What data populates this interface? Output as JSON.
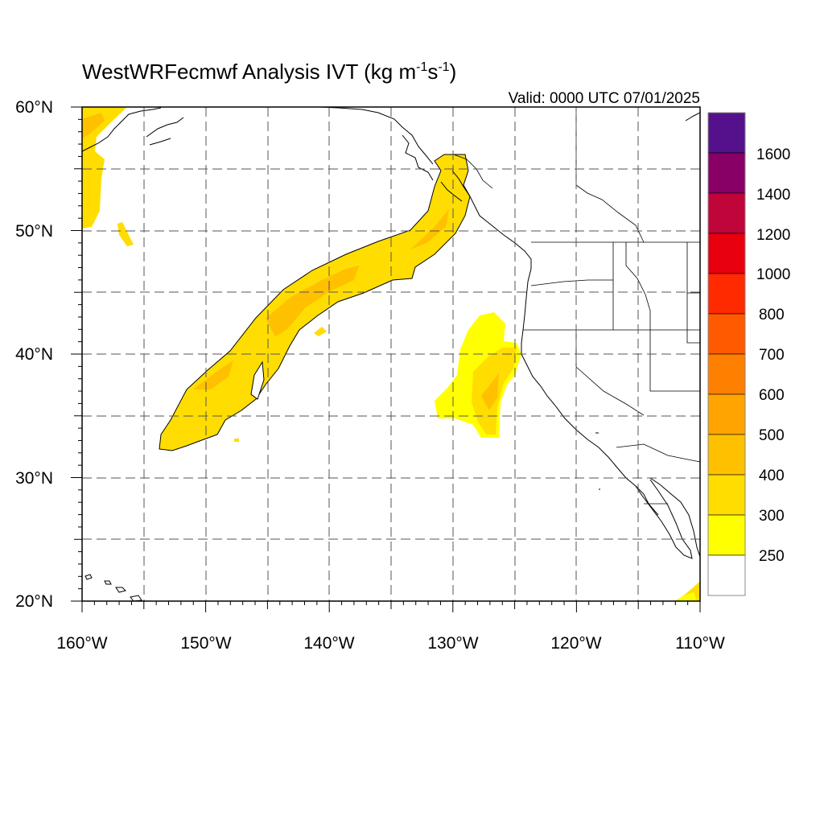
{
  "figure": {
    "title_main": "WestWRFecmwf Analysis IVT (kg m",
    "title_exp1": "-1",
    "title_s": "s",
    "title_exp2": "-1",
    "title_close": ")",
    "valid": "Valid: 0000 UTC 07/01/2025"
  },
  "map": {
    "lon_labels": [
      "160°W",
      "150°W",
      "140°W",
      "130°W",
      "120°W",
      "110°W"
    ],
    "lat_labels": [
      "60°N",
      "50°N",
      "40°N",
      "30°N",
      "20°N"
    ],
    "lon_range": [
      -160,
      -110
    ],
    "lat_range": [
      20,
      60
    ],
    "projection": "cylindrical equidistant",
    "grid": "dashed every 5 degrees"
  },
  "colorbar": {
    "labels": [
      "1600",
      "1400",
      "1200",
      "1000",
      "800",
      "700",
      "600",
      "500",
      "400",
      "300",
      "250"
    ],
    "colors": [
      "#55118c",
      "#880066",
      "#c0053b",
      "#e8000e",
      "#ff2a00",
      "#ff5a00",
      "#ff7f00",
      "#ffa400",
      "#ffc000",
      "#ffdd00",
      "#ffff00",
      "#ffffff"
    ]
  },
  "chart_data": {
    "type": "heatmap",
    "title": "WestWRFecmwf Analysis IVT (kg m-1s-1)",
    "subtitle": "Valid: 0000 UTC 07/01/2025",
    "x_range": [
      -160,
      -110
    ],
    "y_range": [
      20,
      60
    ],
    "levels": [
      250,
      300,
      400,
      500,
      600,
      700,
      800,
      1000,
      1200,
      1400,
      1600
    ]
  }
}
